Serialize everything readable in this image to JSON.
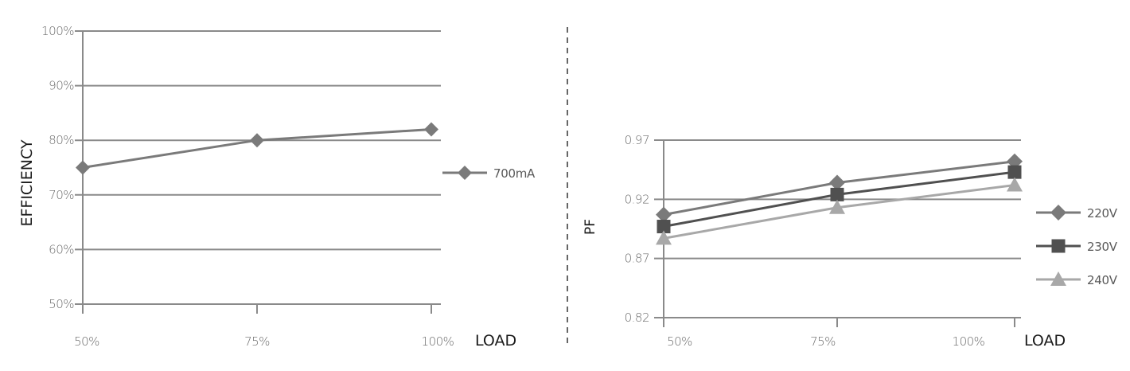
{
  "chart_data": [
    {
      "type": "line",
      "title": "",
      "xlabel": "LOAD",
      "ylabel": "EFFICIENCY",
      "categories": [
        "50%",
        "75%",
        "100%"
      ],
      "y_ticks": [
        "100%",
        "90%",
        "80%",
        "70%",
        "60%",
        "50%"
      ],
      "ylim": [
        50,
        100
      ],
      "grid": true,
      "legend_position": "right",
      "series": [
        {
          "name": "700mA",
          "values": [
            75,
            80,
            82
          ],
          "color": "#7a7a7a",
          "marker": "diamond"
        }
      ]
    },
    {
      "type": "line",
      "title": "",
      "xlabel": "LOAD",
      "ylabel": "PF",
      "categories": [
        "50%",
        "75%",
        "100%"
      ],
      "y_ticks": [
        "0.97",
        "0.92",
        "0.87",
        "0.82"
      ],
      "ylim": [
        0.82,
        0.97
      ],
      "grid": true,
      "legend_position": "right",
      "series": [
        {
          "name": "220V",
          "values": [
            0.907,
            0.934,
            0.952
          ],
          "color": "#7a7a7a",
          "marker": "diamond"
        },
        {
          "name": "230V",
          "values": [
            0.897,
            0.924,
            0.943
          ],
          "color": "#505050",
          "marker": "square"
        },
        {
          "name": "240V",
          "values": [
            0.887,
            0.913,
            0.932
          ],
          "color": "#a8a8a8",
          "marker": "triangle"
        }
      ]
    }
  ],
  "colors": {
    "axis": "#8a8a8a",
    "grid": "#8a8a8a",
    "divider": "#333333"
  }
}
